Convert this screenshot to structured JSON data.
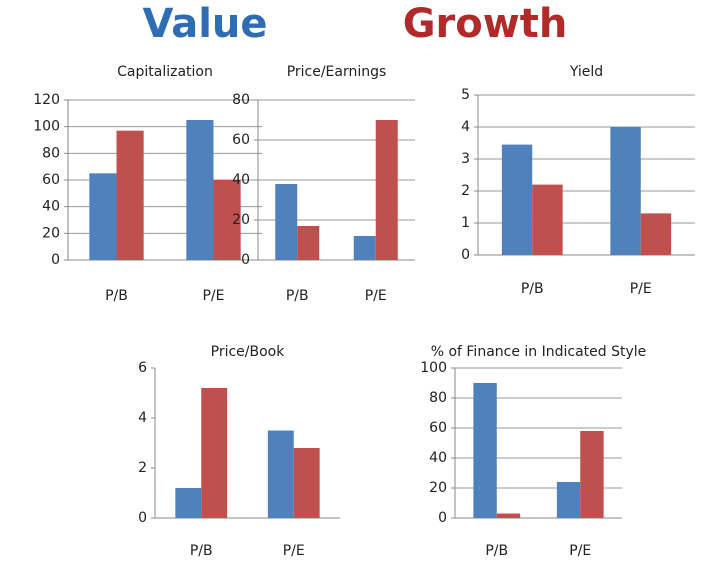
{
  "legend": [
    {
      "name": "Value",
      "color": "#2e6db4"
    },
    {
      "name": "Growth",
      "color": "#b02a2a"
    }
  ],
  "chart_data": [
    {
      "type": "bar",
      "title": "Capitalization",
      "categories": [
        "P/B",
        "P/E"
      ],
      "series": [
        {
          "color": "#4f81bd",
          "values": [
            65,
            105
          ]
        },
        {
          "color": "#c0504d",
          "values": [
            97,
            60
          ]
        }
      ],
      "ylim": [
        0,
        120
      ],
      "yticks": [
        0,
        20,
        40,
        60,
        80,
        100,
        120
      ],
      "grid": true
    },
    {
      "type": "bar",
      "title": "Price/Earnings",
      "categories": [
        "P/B",
        "P/E"
      ],
      "series": [
        {
          "color": "#4f81bd",
          "values": [
            38,
            12
          ]
        },
        {
          "color": "#c0504d",
          "values": [
            17,
            70
          ]
        }
      ],
      "ylim": [
        0,
        80
      ],
      "yticks": [
        0,
        20,
        40,
        60,
        80
      ],
      "grid": true
    },
    {
      "type": "bar",
      "title": "Yield",
      "categories": [
        "P/B",
        "P/E"
      ],
      "series": [
        {
          "color": "#4f81bd",
          "values": [
            3.45,
            4.0
          ]
        },
        {
          "color": "#c0504d",
          "values": [
            2.2,
            1.3
          ]
        }
      ],
      "ylim": [
        0,
        5
      ],
      "yticks": [
        0,
        1,
        2,
        3,
        4,
        5
      ],
      "grid": true
    },
    {
      "type": "bar",
      "title": "Price/Book",
      "categories": [
        "P/B",
        "P/E"
      ],
      "series": [
        {
          "color": "#4f81bd",
          "values": [
            1.2,
            3.5
          ]
        },
        {
          "color": "#c0504d",
          "values": [
            5.2,
            2.8
          ]
        }
      ],
      "ylim": [
        0,
        6
      ],
      "yticks": [
        0,
        2,
        4,
        6
      ],
      "grid": false
    },
    {
      "type": "bar",
      "title": "% of Finance in Indicated Style",
      "categories": [
        "P/B",
        "P/E"
      ],
      "series": [
        {
          "color": "#4f81bd",
          "values": [
            90,
            24
          ]
        },
        {
          "color": "#c0504d",
          "values": [
            3,
            58
          ]
        }
      ],
      "ylim": [
        0,
        100
      ],
      "yticks": [
        0,
        20,
        40,
        60,
        80,
        100
      ],
      "grid": true
    }
  ]
}
